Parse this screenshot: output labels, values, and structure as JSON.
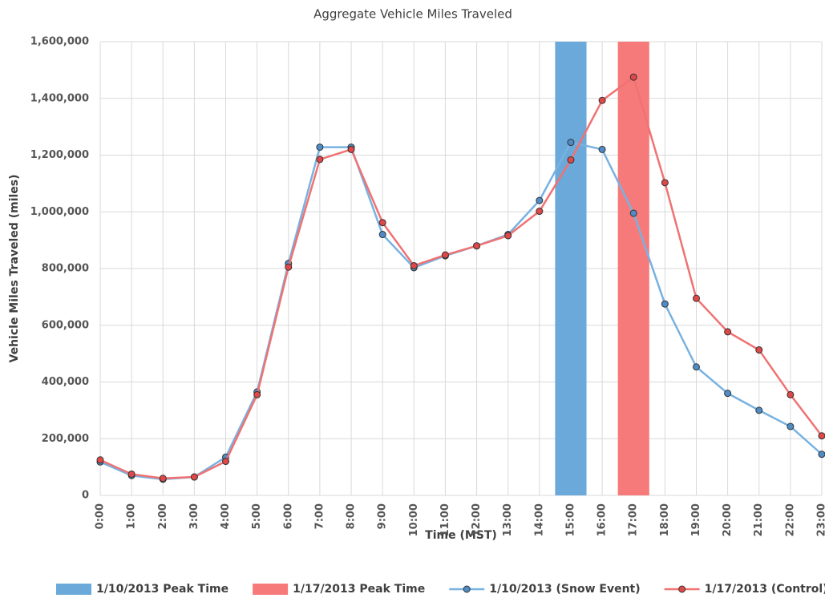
{
  "chart_data": {
    "type": "line",
    "title": "Aggregate Vehicle Miles Traveled",
    "x_label": "Time (MST)",
    "y_label": "Vehicle Miles Traveled (miles)",
    "categories": [
      "0:00",
      "1:00",
      "2:00",
      "3:00",
      "4:00",
      "5:00",
      "6:00",
      "7:00",
      "8:00",
      "9:00",
      "10:00",
      "11:00",
      "12:00",
      "13:00",
      "14:00",
      "15:00",
      "16:00",
      "17:00",
      "18:00",
      "19:00",
      "20:00",
      "21:00",
      "22:00",
      "23:00"
    ],
    "series": [
      {
        "name": "1/10/2013 Peak Time",
        "type": "bar",
        "color": "#6aa9da",
        "values": [
          null,
          null,
          null,
          null,
          null,
          null,
          null,
          null,
          null,
          null,
          null,
          null,
          null,
          null,
          null,
          1600000,
          null,
          null,
          null,
          null,
          null,
          null,
          null,
          null
        ]
      },
      {
        "name": "1/17/2013 Peak Time",
        "type": "bar",
        "color": "#f77a7a",
        "values": [
          null,
          null,
          null,
          null,
          null,
          null,
          null,
          null,
          null,
          null,
          null,
          null,
          null,
          null,
          null,
          null,
          null,
          1600000,
          null,
          null,
          null,
          null,
          null,
          null
        ]
      },
      {
        "name": "1/10/2013 (Snow Event)",
        "type": "line",
        "color": "#78b2e0",
        "marker_color": "#4f8cc6",
        "values": [
          118000,
          70000,
          57000,
          65000,
          135000,
          365000,
          818000,
          1228000,
          1228000,
          920000,
          803000,
          845000,
          880000,
          920000,
          1040000,
          1245000,
          1220000,
          995000,
          675000,
          453000,
          360000,
          300000,
          243000,
          145000
        ]
      },
      {
        "name": "1/17/2013 (Control)",
        "type": "line",
        "color": "#f07272",
        "marker_color": "#e04848",
        "values": [
          125000,
          75000,
          60000,
          65000,
          120000,
          355000,
          805000,
          1185000,
          1220000,
          962000,
          810000,
          848000,
          880000,
          916000,
          1002000,
          1183000,
          1393000,
          1475000,
          1103000,
          695000,
          577000,
          513000,
          355000,
          210000
        ]
      }
    ],
    "ylim": [
      0,
      1600000
    ],
    "yticks": [
      0,
      {
        "value": 200000,
        "label": "200,000"
      },
      {
        "value": 400000,
        "label": "400,000"
      },
      {
        "value": 600000,
        "label": "600,000"
      },
      {
        "value": 800000,
        "label": "800,000"
      },
      {
        "value": 1000000,
        "label": "1,000,000"
      },
      {
        "value": 1200000,
        "label": "1,200,000"
      },
      {
        "value": 1400000,
        "label": "1,400,000"
      },
      {
        "value": 1600000,
        "label": "1,600,000"
      }
    ],
    "grid": true,
    "legend": "bottom"
  }
}
